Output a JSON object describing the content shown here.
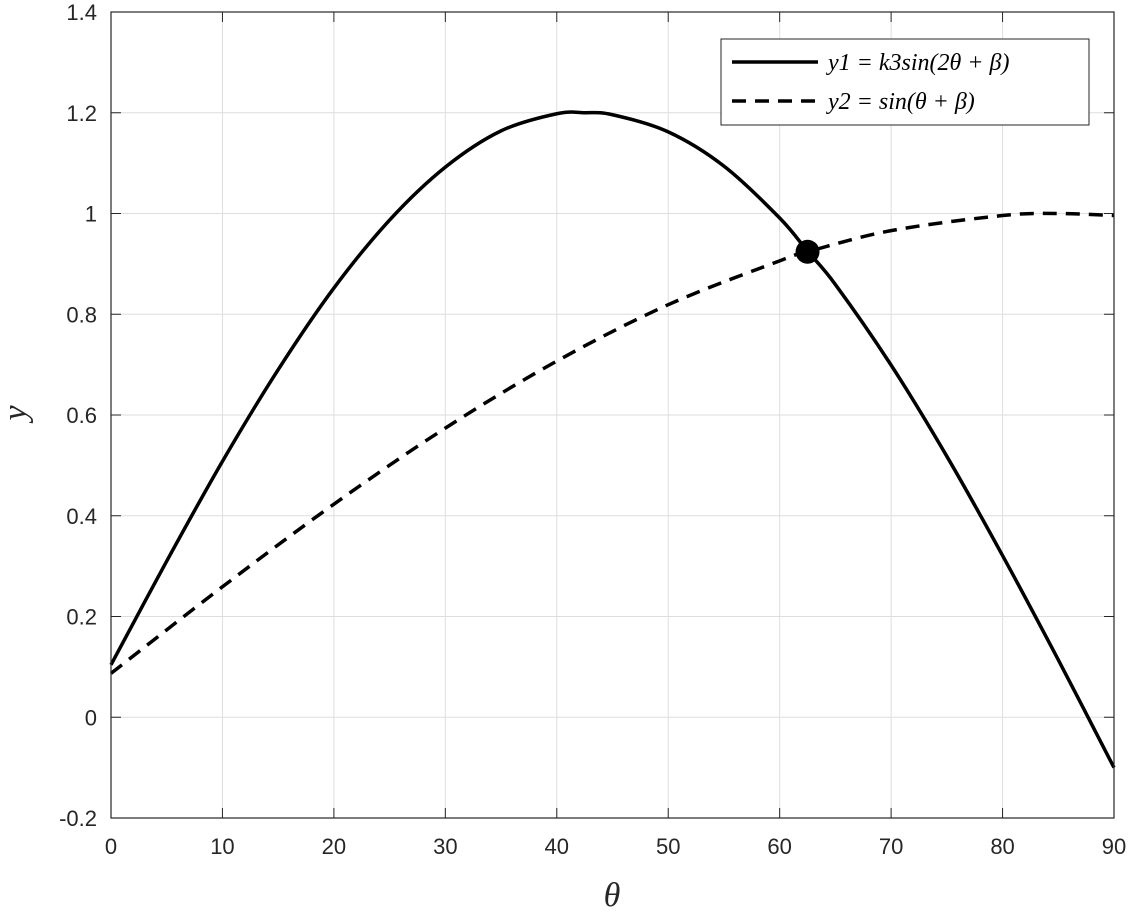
{
  "chart_data": {
    "type": "line",
    "xlabel": "θ",
    "ylabel": "y",
    "xlim": [
      0,
      90
    ],
    "ylim": [
      -0.2,
      1.4
    ],
    "xticks": [
      0,
      10,
      20,
      30,
      40,
      50,
      60,
      70,
      80,
      90
    ],
    "yticks": [
      -0.2,
      0,
      0.2,
      0.4,
      0.6,
      0.8,
      1,
      1.2,
      1.4
    ],
    "xtick_labels": [
      "0",
      "10",
      "20",
      "30",
      "40",
      "50",
      "60",
      "70",
      "80",
      "90"
    ],
    "ytick_labels": [
      "-0.2",
      "0",
      "0.2",
      "0.4",
      "0.6",
      "0.8",
      "1",
      "1.2",
      "1.4"
    ],
    "grid": true,
    "legend_position": "top-right",
    "legend_colors": {
      "line": "#000000",
      "grid": "#dedede",
      "axis": "#262626"
    },
    "series": [
      {
        "name": "y1 = k3sin(2θ + β)",
        "style": "solid",
        "x": [
          0,
          5,
          10,
          15,
          20,
          25,
          30,
          35,
          40,
          42.5,
          45,
          50,
          55,
          60,
          62.5,
          65,
          70,
          75,
          80,
          85,
          90
        ],
        "y": [
          0.104,
          0.31,
          0.508,
          0.69,
          0.852,
          0.987,
          1.092,
          1.164,
          1.198,
          1.2,
          1.196,
          1.162,
          1.094,
          0.991,
          0.925,
          0.859,
          0.699,
          0.518,
          0.321,
          0.114,
          -0.1
        ]
      },
      {
        "name": "y2 = sin(θ + β)",
        "style": "dashed",
        "x": [
          0,
          10,
          20,
          30,
          40,
          50,
          60,
          62.5,
          70,
          80,
          85,
          90
        ],
        "y": [
          0.087,
          0.259,
          0.423,
          0.574,
          0.707,
          0.819,
          0.906,
          0.924,
          0.966,
          0.996,
          1.0,
          0.996
        ]
      }
    ],
    "marker": {
      "x": 62.5,
      "y": 0.924
    }
  }
}
